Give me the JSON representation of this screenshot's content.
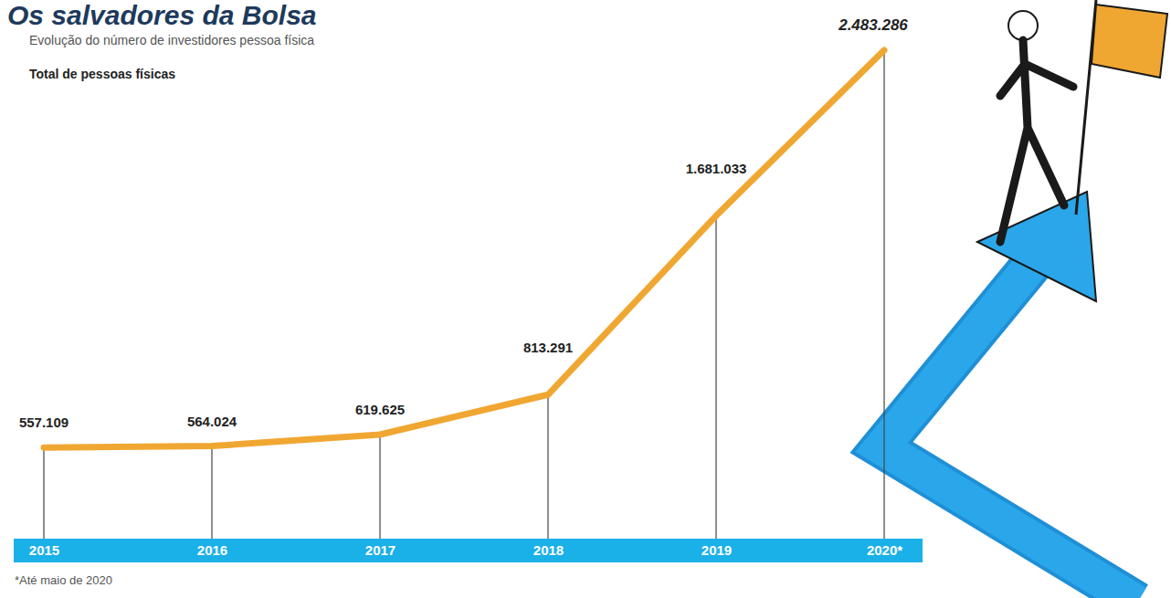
{
  "chart_data": {
    "type": "line",
    "title": "Os salvadores da Bolsa",
    "subtitle": "Evolução do número de investidores pessoa física",
    "ylabel": "Total de pessoas físicas",
    "footnote": "*Até maio de 2020",
    "categories": [
      "2015",
      "2016",
      "2017",
      "2018",
      "2019",
      "2020*"
    ],
    "values": [
      557109,
      564024,
      619625,
      813291,
      1681033,
      2483286
    ],
    "value_labels": [
      "557.109",
      "564.024",
      "619.625",
      "813.291",
      "1.681.033",
      "2.483.286"
    ],
    "color": "#f0a732",
    "ylim": [
      115000,
      2550000
    ],
    "data_labels": true,
    "tick_labels": "x",
    "grid": false
  }
}
